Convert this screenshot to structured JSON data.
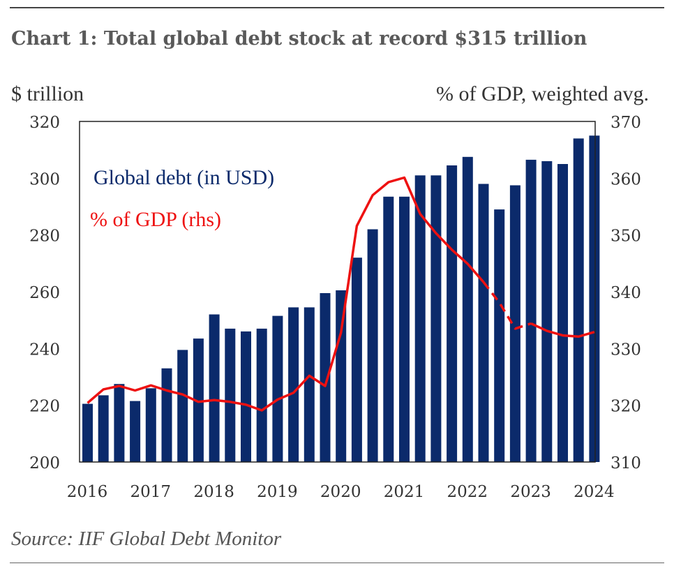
{
  "title": "Chart 1: Total global debt stock at record $315 trillion",
  "source": "Source: IIF Global Debt Monitor",
  "colors": {
    "bar": "#0b2a6b",
    "line": "#ee1111",
    "text": "#333333",
    "title": "#595959"
  },
  "chart_data": {
    "type": "bar",
    "left_axis_label": "$ trillion",
    "right_axis_label": "% of GDP, weighted avg.",
    "ylim_left": [
      200,
      320
    ],
    "ylim_right": [
      310,
      370
    ],
    "yticks_left": [
      "200",
      "220",
      "240",
      "260",
      "280",
      "300",
      "320"
    ],
    "yticks_right": [
      "310",
      "320",
      "330",
      "340",
      "350",
      "360",
      "370"
    ],
    "x_tick_labels": [
      "2016",
      "2017",
      "2018",
      "2019",
      "2020",
      "2021",
      "2022",
      "2023",
      "2024"
    ],
    "legend_position": "top-left",
    "grid": false,
    "categories": [
      "2016Q1",
      "2016Q2",
      "2016Q3",
      "2016Q4",
      "2017Q1",
      "2017Q2",
      "2017Q3",
      "2017Q4",
      "2018Q1",
      "2018Q2",
      "2018Q3",
      "2018Q4",
      "2019Q1",
      "2019Q2",
      "2019Q3",
      "2019Q4",
      "2020Q1",
      "2020Q2",
      "2020Q3",
      "2020Q4",
      "2021Q1",
      "2021Q2",
      "2021Q3",
      "2021Q4",
      "2022Q1",
      "2022Q2",
      "2022Q3",
      "2022Q4",
      "2023Q1",
      "2023Q2",
      "2023Q3",
      "2023Q4",
      "2024Q1"
    ],
    "series": [
      {
        "name": "Global debt (in USD)",
        "kind": "bar",
        "axis": "left",
        "values": [
          220.5,
          223.5,
          227.5,
          221.5,
          226,
          233,
          239.5,
          243.5,
          252,
          247,
          246,
          247,
          251.5,
          254.5,
          254.5,
          259.5,
          260.5,
          272,
          282,
          293.5,
          293.5,
          301,
          301,
          304.5,
          307.5,
          298,
          289,
          297.5,
          306.5,
          306,
          305,
          314,
          315
        ]
      },
      {
        "name": "% of GDP (rhs)",
        "kind": "line",
        "axis": "right",
        "values": [
          320.4,
          322.8,
          323.4,
          322.6,
          323.5,
          322.6,
          321.9,
          320.6,
          320.9,
          320.6,
          320.1,
          319.1,
          321.0,
          322.2,
          325.2,
          323.4,
          332.8,
          351.6,
          357.0,
          359.3,
          360.1,
          353.7,
          350.3,
          347.4,
          344.9,
          341.7,
          338.1,
          333.5,
          334.4,
          333.1,
          332.3,
          332.1,
          332.9
        ],
        "dashed_segments": [
          [
            24,
            27
          ]
        ]
      }
    ]
  }
}
